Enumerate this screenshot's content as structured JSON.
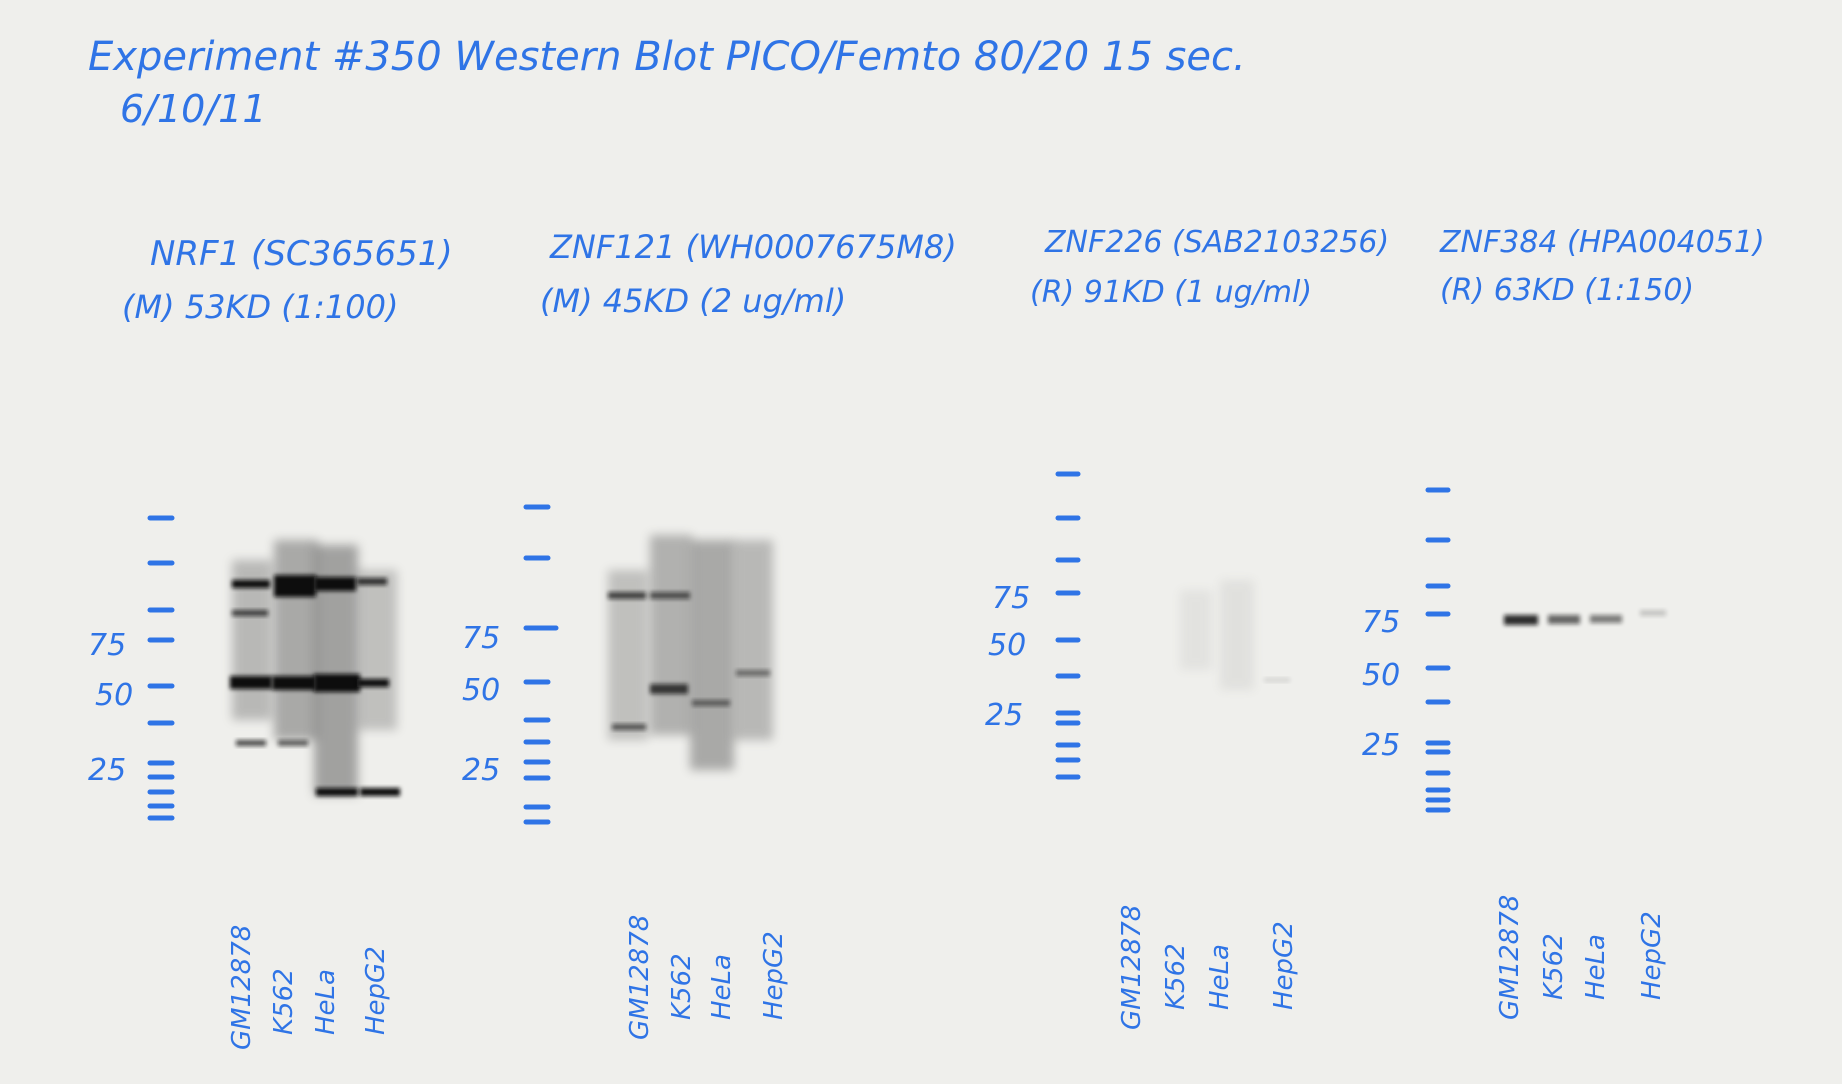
{
  "header": {
    "line1": "Experiment #350 Western Blot   PICO/Femto 80/20 15 sec.",
    "line2": "6/10/11"
  },
  "panels": [
    {
      "title": "NRF1 (SC365651)",
      "subtitle": "(M) 53KD (1:100)",
      "markers": [
        "75",
        "50",
        "25"
      ],
      "lanes": [
        "GM12878",
        "K562",
        "HeLa",
        "HepG2"
      ]
    },
    {
      "title": "ZNF121 (WH0007675M8)",
      "subtitle": "(M) 45KD (2 ug/ml)",
      "markers": [
        "75",
        "50",
        "25"
      ],
      "lanes": [
        "GM12878",
        "K562",
        "HeLa",
        "HepG2"
      ]
    },
    {
      "title": "ZNF226 (SAB2103256)",
      "subtitle": "(R) 91KD (1 ug/ml)",
      "markers": [
        "75",
        "50",
        "25"
      ],
      "lanes": [
        "GM12878",
        "K562",
        "HeLa",
        "HepG2"
      ]
    },
    {
      "title": "ZNF384 (HPA004051)",
      "subtitle": "(R) 63KD (1:150)",
      "markers": [
        "75",
        "50",
        "25"
      ],
      "lanes": [
        "GM12878",
        "K562",
        "HeLa",
        "HepG2"
      ]
    }
  ],
  "colors": {
    "paper": "#efefec",
    "ink": "#2f74e6",
    "band": "#111111"
  }
}
